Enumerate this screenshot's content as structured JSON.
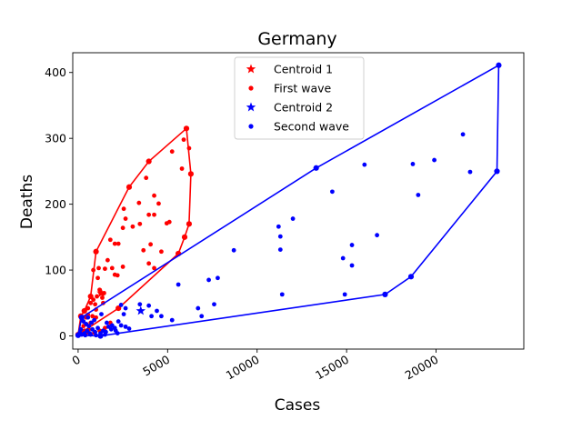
{
  "chart_data": {
    "type": "scatter",
    "title": "Germany",
    "xlabel": "Cases",
    "ylabel": "Deaths",
    "xlim": [
      -300,
      24900
    ],
    "ylim": [
      -20,
      430
    ],
    "x_ticks": [
      0,
      5000,
      10000,
      15000,
      20000
    ],
    "y_ticks": [
      0,
      100,
      200,
      300,
      400
    ],
    "grid": false,
    "legend_position": "top-center",
    "legend": [
      {
        "label": "Centroid 1",
        "marker": "star",
        "color": "#ff0000"
      },
      {
        "label": "First wave",
        "marker": "dot",
        "color": "#ff0000"
      },
      {
        "label": "Centroid 2",
        "marker": "star",
        "color": "#0000ff"
      },
      {
        "label": "Second wave",
        "marker": "dot",
        "color": "#0000ff"
      }
    ],
    "series": [
      {
        "name": "First wave",
        "color": "#ff0000",
        "centroid": [
          1300,
          65
        ],
        "points": [
          [
            6050,
            315
          ],
          [
            3950,
            265
          ],
          [
            2850,
            226
          ],
          [
            6300,
            246
          ],
          [
            6200,
            170
          ],
          [
            5950,
            150
          ],
          [
            5600,
            125
          ],
          [
            2250,
            140
          ],
          [
            1000,
            128
          ],
          [
            850,
            100
          ],
          [
            700,
            60
          ],
          [
            350,
            38
          ],
          [
            150,
            30
          ],
          [
            0,
            2
          ],
          [
            150,
            4
          ],
          [
            5250,
            280
          ],
          [
            5900,
            298
          ],
          [
            6200,
            285
          ],
          [
            5800,
            254
          ],
          [
            4250,
            213
          ],
          [
            3800,
            240
          ],
          [
            3400,
            202
          ],
          [
            4500,
            201
          ],
          [
            5100,
            173
          ],
          [
            4950,
            171
          ],
          [
            4250,
            184
          ],
          [
            3950,
            184
          ],
          [
            3450,
            170
          ],
          [
            2550,
            193
          ],
          [
            2650,
            178
          ],
          [
            3050,
            166
          ],
          [
            2500,
            164
          ],
          [
            2050,
            140
          ],
          [
            1800,
            146
          ],
          [
            1650,
            115
          ],
          [
            1900,
            103
          ],
          [
            2200,
            92
          ],
          [
            2050,
            93
          ],
          [
            4050,
            139
          ],
          [
            3650,
            130
          ],
          [
            4650,
            128
          ],
          [
            3950,
            110
          ],
          [
            4250,
            103
          ],
          [
            2500,
            105
          ],
          [
            1500,
            102
          ],
          [
            1150,
            103
          ],
          [
            1100,
            88
          ],
          [
            1200,
            70
          ],
          [
            1050,
            60
          ],
          [
            1250,
            65
          ],
          [
            1450,
            65
          ],
          [
            1350,
            58
          ],
          [
            850,
            55
          ],
          [
            950,
            48
          ],
          [
            700,
            50
          ],
          [
            550,
            42
          ],
          [
            550,
            32
          ],
          [
            450,
            28
          ],
          [
            800,
            30
          ],
          [
            1000,
            28
          ],
          [
            700,
            20
          ],
          [
            450,
            18
          ],
          [
            300,
            15
          ],
          [
            600,
            10
          ],
          [
            350,
            8
          ],
          [
            250,
            6
          ],
          [
            500,
            5
          ],
          [
            900,
            5
          ],
          [
            1200,
            8
          ],
          [
            1500,
            12
          ],
          [
            1800,
            20
          ],
          [
            200,
            25
          ],
          [
            1000,
            40
          ],
          [
            1400,
            50
          ]
        ],
        "hull": [
          [
            6050,
            315
          ],
          [
            6300,
            246
          ],
          [
            6200,
            170
          ],
          [
            5950,
            150
          ],
          [
            5600,
            125
          ],
          [
            2250,
            42
          ],
          [
            0,
            2
          ],
          [
            150,
            30
          ],
          [
            350,
            38
          ],
          [
            700,
            60
          ],
          [
            1000,
            128
          ],
          [
            2850,
            226
          ],
          [
            3950,
            265
          ]
        ]
      },
      {
        "name": "Second wave",
        "color": "#0000ff",
        "centroid": [
          3500,
          38
        ],
        "points": [
          [
            23500,
            411
          ],
          [
            23400,
            250
          ],
          [
            18600,
            90
          ],
          [
            17150,
            63
          ],
          [
            13300,
            255
          ],
          [
            16000,
            260
          ],
          [
            21500,
            306
          ],
          [
            21900,
            249
          ],
          [
            19900,
            267
          ],
          [
            18700,
            261
          ],
          [
            19000,
            214
          ],
          [
            14200,
            219
          ],
          [
            12000,
            178
          ],
          [
            11200,
            166
          ],
          [
            11300,
            151
          ],
          [
            11300,
            131
          ],
          [
            8700,
            130
          ],
          [
            15300,
            138
          ],
          [
            16700,
            153
          ],
          [
            14800,
            118
          ],
          [
            15300,
            107
          ],
          [
            14900,
            63
          ],
          [
            11400,
            63
          ],
          [
            5600,
            78
          ],
          [
            7300,
            85
          ],
          [
            7800,
            88
          ],
          [
            7600,
            48
          ],
          [
            6700,
            42
          ],
          [
            6900,
            30
          ],
          [
            5250,
            24
          ],
          [
            4650,
            30
          ],
          [
            4400,
            38
          ],
          [
            3950,
            46
          ],
          [
            3450,
            48
          ],
          [
            4100,
            30
          ],
          [
            2650,
            42
          ],
          [
            2550,
            33
          ],
          [
            2400,
            47
          ],
          [
            2650,
            14
          ],
          [
            2850,
            11
          ],
          [
            2400,
            16
          ],
          [
            2250,
            22
          ],
          [
            2050,
            12
          ],
          [
            1850,
            10
          ],
          [
            1700,
            14
          ],
          [
            1550,
            6
          ],
          [
            1400,
            8
          ],
          [
            1250,
            4
          ],
          [
            1100,
            12
          ],
          [
            950,
            6
          ],
          [
            800,
            10
          ],
          [
            650,
            4
          ],
          [
            500,
            8
          ],
          [
            350,
            4
          ],
          [
            200,
            2
          ],
          [
            150,
            10
          ],
          [
            300,
            22
          ],
          [
            450,
            18
          ],
          [
            600,
            15
          ],
          [
            750,
            20
          ],
          [
            900,
            24
          ],
          [
            1300,
            33
          ],
          [
            1600,
            20
          ],
          [
            1900,
            16
          ],
          [
            2100,
            8
          ],
          [
            400,
            1
          ],
          [
            700,
            2
          ],
          [
            1000,
            1
          ],
          [
            1500,
            2
          ],
          [
            2200,
            4
          ],
          [
            100,
            5
          ],
          [
            550,
            28
          ]
        ],
        "hull": [
          [
            23500,
            411
          ],
          [
            23400,
            250
          ],
          [
            18600,
            90
          ],
          [
            17150,
            63
          ],
          [
            1250,
            0
          ],
          [
            0,
            1
          ],
          [
            200,
            28
          ],
          [
            13300,
            255
          ]
        ]
      }
    ]
  }
}
